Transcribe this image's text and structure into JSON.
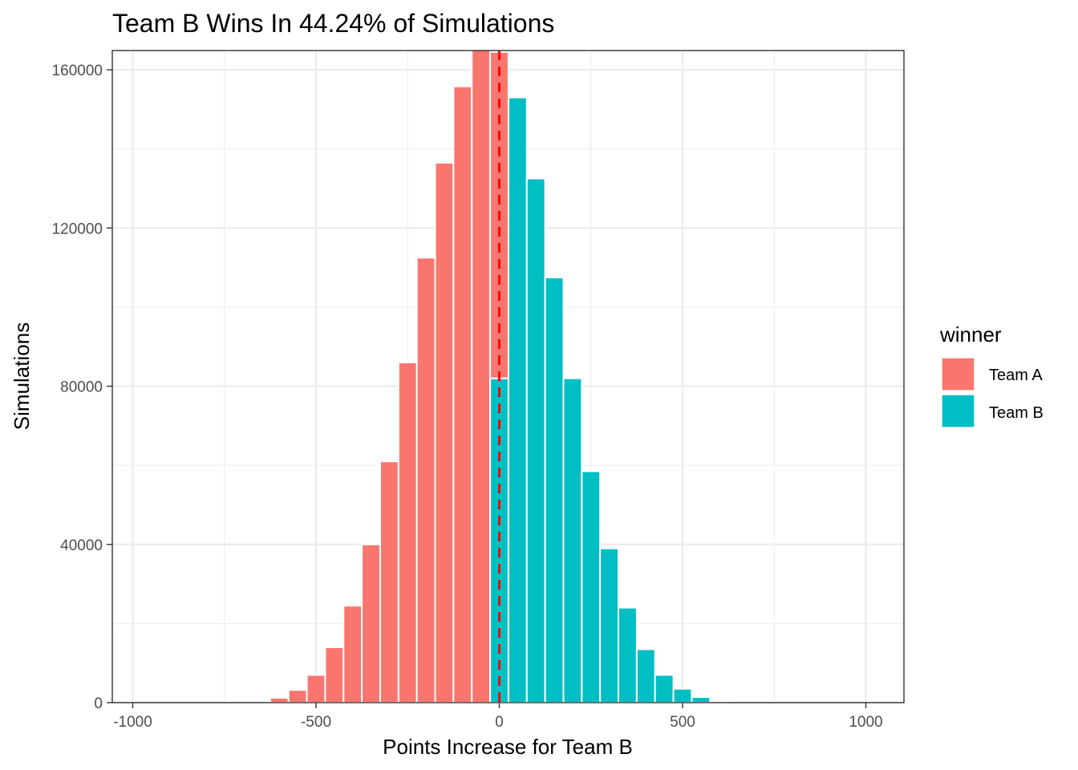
{
  "chart_data": {
    "type": "bar",
    "title": "Team B Wins In 44.24% of Simulations",
    "xlabel": "Points Increase for Team B",
    "ylabel": "Simulations",
    "xlim": [
      -1000,
      1000
    ],
    "ylim": [
      0,
      160000
    ],
    "x_ticks": [
      -1000,
      -500,
      0,
      500,
      1000
    ],
    "x_tick_labels": [
      "-1000",
      "-500",
      "0",
      "500",
      "1000"
    ],
    "y_ticks": [
      0,
      40000,
      80000,
      120000,
      160000
    ],
    "y_tick_labels": [
      "0",
      "40000",
      "80000",
      "120000",
      "160000"
    ],
    "bin_width": 50,
    "grid": true,
    "legend": {
      "title": "winner",
      "position": "right",
      "entries": [
        "Team A",
        "Team B"
      ]
    },
    "colors": {
      "Team A": "#F8766D",
      "Team B": "#00BFC4",
      "reference_line": "#FF0000"
    },
    "reference_line": {
      "x": 0,
      "style": "dashed"
    },
    "series": [
      {
        "name": "Team A",
        "bins": [
          {
            "x": -600,
            "value": 1200
          },
          {
            "x": -550,
            "value": 3200
          },
          {
            "x": -500,
            "value": 7000
          },
          {
            "x": -450,
            "value": 14000
          },
          {
            "x": -400,
            "value": 24500
          },
          {
            "x": -350,
            "value": 40000
          },
          {
            "x": -300,
            "value": 61000
          },
          {
            "x": -250,
            "value": 86000
          },
          {
            "x": -200,
            "value": 112500
          },
          {
            "x": -150,
            "value": 136500
          },
          {
            "x": -100,
            "value": 155800
          },
          {
            "x": -50,
            "value": 165000
          },
          {
            "x": 0,
            "value": 82500
          }
        ]
      },
      {
        "name": "Team B",
        "bins": [
          {
            "x": 0,
            "value": 82000
          },
          {
            "x": 50,
            "value": 153000
          },
          {
            "x": 100,
            "value": 132500
          },
          {
            "x": 150,
            "value": 107500
          },
          {
            "x": 200,
            "value": 82000
          },
          {
            "x": 250,
            "value": 58500
          },
          {
            "x": 300,
            "value": 39000
          },
          {
            "x": 350,
            "value": 24000
          },
          {
            "x": 400,
            "value": 13500
          },
          {
            "x": 450,
            "value": 7000
          },
          {
            "x": 500,
            "value": 3500
          },
          {
            "x": 550,
            "value": 1400
          },
          {
            "x": 600,
            "value": 300
          }
        ]
      }
    ]
  }
}
